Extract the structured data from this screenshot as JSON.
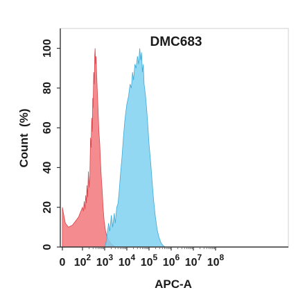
{
  "chart_data": {
    "type": "area",
    "title": "DMC683",
    "xlabel": "APC-A",
    "ylabel": "Count  (%)",
    "x_scale": "biexponential",
    "xlim": [
      0,
      100000000
    ],
    "ylim": [
      0,
      110
    ],
    "x_ticks": [
      {
        "value": 0,
        "base": "0",
        "exp": ""
      },
      {
        "value": 100,
        "base": "10",
        "exp": "2"
      },
      {
        "value": 1000,
        "base": "10",
        "exp": "3"
      },
      {
        "value": 10000,
        "base": "10",
        "exp": "4"
      },
      {
        "value": 100000,
        "base": "10",
        "exp": "5"
      },
      {
        "value": 1000000,
        "base": "10",
        "exp": "6"
      },
      {
        "value": 10000000,
        "base": "10",
        "exp": "7"
      },
      {
        "value": 100000000,
        "base": "10",
        "exp": "8"
      }
    ],
    "y_ticks": [
      0,
      20,
      40,
      60,
      80,
      100
    ],
    "grid": false,
    "legend": "none",
    "series": [
      {
        "color": "#f2777a",
        "stroke": "#d9434a",
        "points": [
          [
            0,
            20
          ],
          [
            5,
            17
          ],
          [
            15,
            12
          ],
          [
            30,
            10
          ],
          [
            50,
            11
          ],
          [
            80,
            15
          ],
          [
            100,
            20
          ],
          [
            110,
            18
          ],
          [
            120,
            23
          ],
          [
            130,
            19
          ],
          [
            140,
            26
          ],
          [
            150,
            22
          ],
          [
            160,
            31
          ],
          [
            170,
            25
          ],
          [
            185,
            38
          ],
          [
            200,
            30
          ],
          [
            215,
            36
          ],
          [
            230,
            55
          ],
          [
            245,
            50
          ],
          [
            260,
            65
          ],
          [
            275,
            58
          ],
          [
            290,
            75
          ],
          [
            300,
            70
          ],
          [
            320,
            88
          ],
          [
            340,
            82
          ],
          [
            355,
            96
          ],
          [
            370,
            100
          ],
          [
            390,
            92
          ],
          [
            410,
            96
          ],
          [
            430,
            88
          ],
          [
            460,
            80
          ],
          [
            500,
            70
          ],
          [
            550,
            58
          ],
          [
            600,
            52
          ],
          [
            650,
            43
          ],
          [
            700,
            36
          ],
          [
            780,
            28
          ],
          [
            850,
            20
          ],
          [
            950,
            13
          ],
          [
            1100,
            8
          ],
          [
            1300,
            5
          ],
          [
            1600,
            3
          ],
          [
            2000,
            1.5
          ],
          [
            2600,
            0.5
          ],
          [
            3000,
            0
          ]
        ]
      },
      {
        "color": "#7fd1f0",
        "stroke": "#3fa9d6",
        "points": [
          [
            1000,
            0
          ],
          [
            1200,
            3
          ],
          [
            1500,
            12
          ],
          [
            1700,
            8
          ],
          [
            2000,
            16
          ],
          [
            2300,
            10
          ],
          [
            2700,
            17
          ],
          [
            3000,
            12
          ],
          [
            3500,
            20
          ],
          [
            4000,
            22
          ],
          [
            4500,
            28
          ],
          [
            5000,
            35
          ],
          [
            6000,
            45
          ],
          [
            7000,
            55
          ],
          [
            8000,
            63
          ],
          [
            9000,
            68
          ],
          [
            10000,
            72
          ],
          [
            12000,
            76
          ],
          [
            14000,
            82
          ],
          [
            16000,
            80
          ],
          [
            18000,
            88
          ],
          [
            20000,
            84
          ],
          [
            23000,
            92
          ],
          [
            26000,
            90
          ],
          [
            30000,
            96
          ],
          [
            34000,
            92
          ],
          [
            38000,
            100
          ],
          [
            42000,
            94
          ],
          [
            46000,
            98
          ],
          [
            50000,
            88
          ],
          [
            55000,
            92
          ],
          [
            60000,
            82
          ],
          [
            70000,
            76
          ],
          [
            80000,
            68
          ],
          [
            90000,
            60
          ],
          [
            100000,
            52
          ],
          [
            120000,
            42
          ],
          [
            140000,
            32
          ],
          [
            160000,
            24
          ],
          [
            190000,
            16
          ],
          [
            230000,
            9
          ],
          [
            280000,
            5
          ],
          [
            350000,
            2
          ],
          [
            450000,
            0.5
          ],
          [
            550000,
            0
          ]
        ]
      }
    ]
  }
}
